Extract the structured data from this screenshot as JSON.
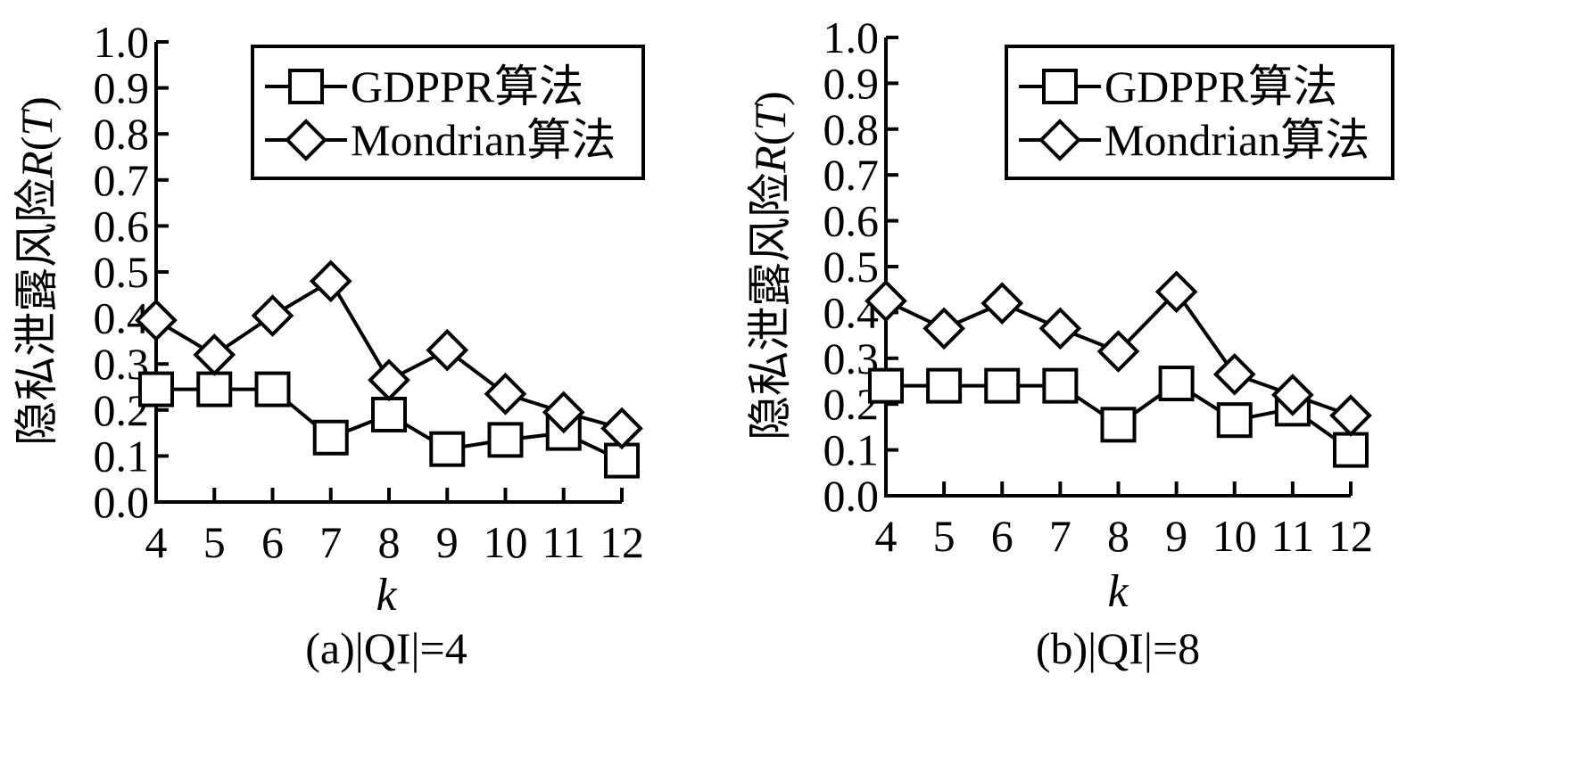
{
  "chart_data": [
    {
      "type": "line",
      "caption": "(a)|QI|=4",
      "xlabel": "k",
      "ylabel_text": "隐私泄露风险",
      "ylabel_var": "R",
      "ylabel_paren_open": "(",
      "ylabel_arg": "T",
      "ylabel_paren_close": ")",
      "categories": [
        "4",
        "5",
        "6",
        "7",
        "8",
        "9",
        "10",
        "11",
        "12"
      ],
      "ylim": [
        0,
        1
      ],
      "yticks": [
        "0.0",
        "0.1",
        "0.2",
        "0.3",
        "0.4",
        "0.5",
        "0.6",
        "0.7",
        "0.8",
        "0.9",
        "1.0"
      ],
      "legend_position": "top-right",
      "grid": false,
      "series": [
        {
          "name": "GDPPR算法",
          "marker": "square",
          "values": [
            0.245,
            0.245,
            0.245,
            0.14,
            0.19,
            0.115,
            0.135,
            0.15,
            0.09
          ]
        },
        {
          "name": "Mondrian算法",
          "marker": "diamond",
          "values": [
            0.395,
            0.32,
            0.405,
            0.48,
            0.265,
            0.33,
            0.235,
            0.195,
            0.16
          ]
        }
      ]
    },
    {
      "type": "line",
      "caption": "(b)|QI|=8",
      "xlabel": "k",
      "ylabel_text": "隐私泄露风险",
      "ylabel_var": "R",
      "ylabel_paren_open": "(",
      "ylabel_arg": "T",
      "ylabel_paren_close": ")",
      "categories": [
        "4",
        "5",
        "6",
        "7",
        "8",
        "9",
        "10",
        "11",
        "12"
      ],
      "ylim": [
        0,
        1
      ],
      "yticks": [
        "0.0",
        "0.1",
        "0.2",
        "0.3",
        "0.4",
        "0.5",
        "0.6",
        "0.7",
        "0.8",
        "0.9",
        "1.0"
      ],
      "legend_position": "top-right",
      "grid": false,
      "series": [
        {
          "name": "GDPPR算法",
          "marker": "square",
          "values": [
            0.24,
            0.24,
            0.24,
            0.24,
            0.155,
            0.245,
            0.165,
            0.19,
            0.1
          ]
        },
        {
          "name": "Mondrian算法",
          "marker": "diamond",
          "values": [
            0.425,
            0.365,
            0.42,
            0.365,
            0.315,
            0.445,
            0.265,
            0.22,
            0.175
          ]
        }
      ]
    }
  ]
}
